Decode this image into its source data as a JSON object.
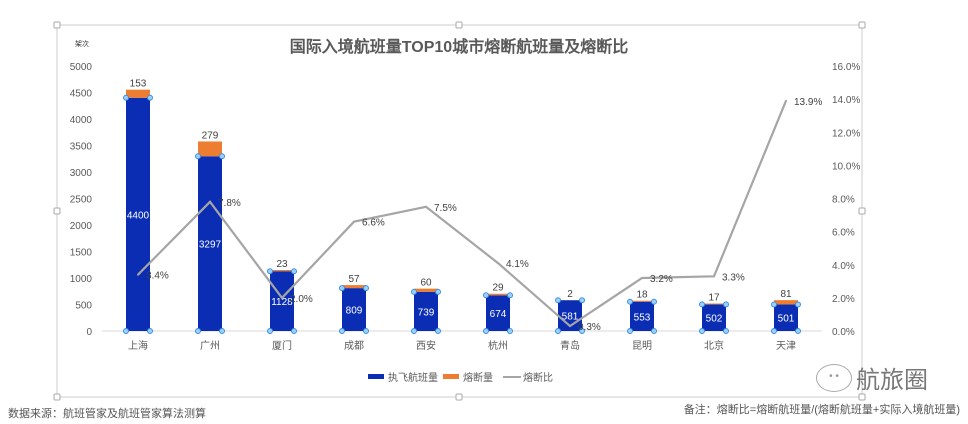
{
  "chart_data": {
    "type": "bar+line",
    "title": "国际入境航班量TOP10城市熔断航班量及熔断比",
    "ylabel": "架次",
    "categories": [
      "上海",
      "广州",
      "厦门",
      "成都",
      "西安",
      "杭州",
      "青岛",
      "昆明",
      "北京",
      "天津"
    ],
    "series": [
      {
        "name": "执飞航班量",
        "type": "bar",
        "color": "#0a2db4",
        "values": [
          4400,
          3297,
          1128,
          809,
          739,
          674,
          581,
          553,
          502,
          501
        ]
      },
      {
        "name": "熔断量",
        "type": "bar-stacked",
        "color": "#ed7d31",
        "values": [
          153,
          279,
          23,
          57,
          60,
          29,
          2,
          18,
          17,
          81
        ]
      },
      {
        "name": "熔断比",
        "type": "line",
        "axis": "right",
        "color": "#a5a5a5",
        "values": [
          3.4,
          7.8,
          2.0,
          6.6,
          7.5,
          4.1,
          0.3,
          3.2,
          3.3,
          13.9
        ],
        "labels": [
          "3.4%",
          "7.8%",
          "2.0%",
          "6.6%",
          "7.5%",
          "4.1%",
          "0.3%",
          "3.2%",
          "3.3%",
          "13.9%"
        ]
      }
    ],
    "ylim": [
      0,
      5000
    ],
    "yticks": [
      "0",
      "500",
      "1000",
      "1500",
      "2000",
      "2500",
      "3000",
      "3500",
      "4000",
      "4500",
      "5000"
    ],
    "y2lim": [
      0,
      16
    ],
    "y2ticks": [
      "0.0%",
      "2.0%",
      "4.0%",
      "6.0%",
      "8.0%",
      "10.0%",
      "12.0%",
      "14.0%",
      "16.0%"
    ],
    "legend": "bottom"
  },
  "footer": {
    "source": "数据来源：航班管家及航班管家算法测算",
    "note": "备注：熔断比=熔断航班量/(熔断航班量+实际入境航班量)",
    "brand": "航旅圈"
  }
}
